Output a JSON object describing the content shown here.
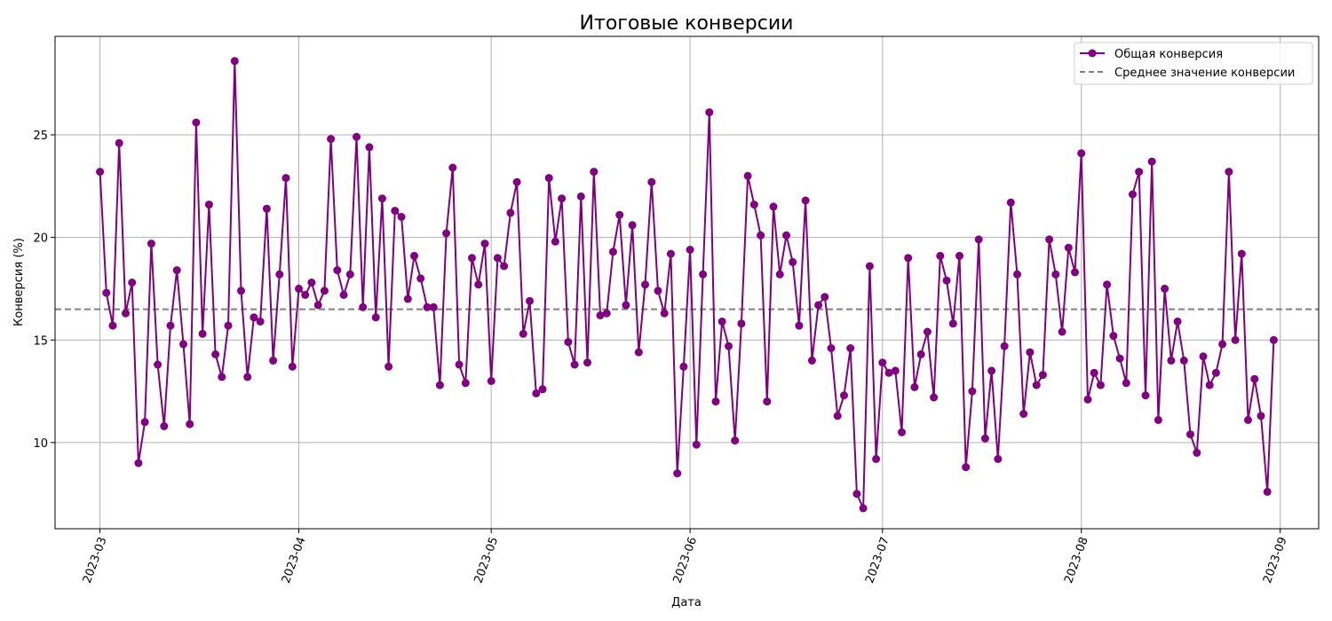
{
  "chart_data": {
    "type": "line",
    "title": "Итоговые конверсии",
    "xlabel": "Дата",
    "ylabel": "Конверсия (%)",
    "x_start": "2023-03-01",
    "x_step_days": 1,
    "xlim": [
      "2023-02-22",
      "2023-09-07"
    ],
    "ylim": [
      5.8,
      29.8
    ],
    "x_ticks": [
      "2023-03",
      "2023-04",
      "2023-05",
      "2023-06",
      "2023-07",
      "2023-08",
      "2023-09"
    ],
    "y_ticks": [
      10,
      15,
      20,
      25
    ],
    "grid": true,
    "legend_position": "top-right",
    "series": [
      {
        "name": "Общая конверсия",
        "color": "#800080",
        "marker": "circle",
        "values": [
          23.2,
          17.3,
          15.7,
          24.6,
          16.3,
          17.8,
          9.0,
          11.0,
          19.7,
          13.8,
          10.8,
          15.7,
          18.4,
          14.8,
          10.9,
          25.6,
          15.3,
          21.6,
          14.3,
          13.2,
          15.7,
          28.6,
          17.4,
          13.2,
          16.1,
          15.9,
          21.4,
          14.0,
          18.2,
          22.9,
          13.7,
          17.5,
          17.2,
          17.8,
          16.7,
          17.4,
          24.8,
          18.4,
          17.2,
          18.2,
          24.9,
          16.6,
          24.4,
          16.1,
          21.9,
          13.7,
          21.3,
          21.0,
          17.0,
          19.1,
          18.0,
          16.6,
          16.6,
          12.8,
          20.2,
          23.4,
          13.8,
          12.9,
          19.0,
          17.7,
          19.7,
          13.0,
          19.0,
          18.6,
          21.2,
          22.7,
          15.3,
          16.9,
          12.4,
          12.6,
          22.9,
          19.8,
          21.9,
          14.9,
          13.8,
          22.0,
          13.9,
          23.2,
          16.2,
          16.3,
          19.3,
          21.1,
          16.7,
          20.6,
          14.4,
          17.7,
          22.7,
          17.4,
          16.3,
          19.2,
          8.5,
          13.7,
          19.4,
          9.9,
          18.2,
          26.1,
          12.0,
          15.9,
          14.7,
          10.1,
          15.8,
          23.0,
          21.6,
          20.1,
          12.0,
          21.5,
          18.2,
          20.1,
          18.8,
          15.7,
          21.8,
          14.0,
          16.7,
          17.1,
          14.6,
          11.3,
          12.3,
          14.6,
          7.5,
          6.8,
          18.6,
          9.2,
          13.9,
          13.4,
          13.5,
          10.5,
          19.0,
          12.7,
          14.3,
          15.4,
          12.2,
          19.1,
          17.9,
          15.8,
          19.1,
          8.8,
          12.5,
          19.9,
          10.2,
          13.5,
          9.2,
          14.7,
          21.7,
          18.2,
          11.4,
          14.4,
          12.8,
          13.3,
          19.9,
          18.2,
          15.4,
          19.5,
          18.3,
          24.1,
          12.1,
          13.4,
          12.8,
          17.7,
          15.2,
          14.1,
          12.9,
          22.1,
          23.2,
          12.3,
          23.7,
          11.1,
          17.5,
          14.0,
          15.9,
          14.0,
          10.4,
          9.5,
          14.2,
          12.8,
          13.4,
          14.8,
          23.2,
          15.0,
          19.2,
          11.1,
          13.1,
          11.3,
          7.6,
          15.0
        ]
      },
      {
        "name": "Среднее значение конверсии",
        "color": "#808080",
        "style": "dashed",
        "value": 16.5
      }
    ]
  }
}
